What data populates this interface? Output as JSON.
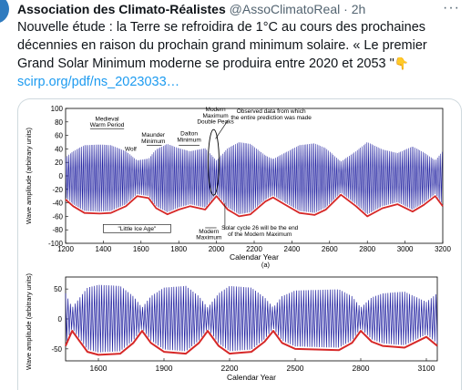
{
  "tweet": {
    "author_name": "Association des Climato-Réalistes",
    "author_handle": "@AssoClimatoReal",
    "separator": "·",
    "time": "2h",
    "more": "···",
    "text": "Nouvelle étude : la Terre se refroidira de 1°C au cours des prochaines décennies en raison du prochain grand minimum solaire. « Le premier Grand Solar Minimum moderne se produira entre 2020 et 2053 \"",
    "emoji": "point-down-emoji",
    "link": "scirp.org/pdf/ns_2023033…"
  },
  "figure_a": {
    "ylabel": "Wave amplitude (arbitrary units)",
    "xlabel": "Calendar Year",
    "panel_label": "(a)",
    "annotations": {
      "medieval": "Medieval\nWarm Period",
      "maunder": "Maunder\nMinimum",
      "wolf": "Wolf",
      "dalton": "Dalton\nMinimum",
      "modern_double": "Modern\nMaximum\nDouble Peaks",
      "observed": "Observed data from which\nthe entire prediction was made",
      "little_ice": "\"Little Ice Age\"",
      "modern_max": "Modern\nMaximum",
      "solar_cycle": "Solar cycle 26 will be the end\nof the Modern Maximum"
    }
  },
  "figure_b": {
    "ylabel": "Wave amplitude (arbitrary units)",
    "xlabel": "Calendar Year"
  },
  "colors": {
    "blue": "#1f1fa0",
    "red": "#d62828"
  },
  "chart_data": [
    {
      "type": "line",
      "title": "",
      "xlabel": "Calendar Year",
      "ylabel": "Wave amplitude (arbitrary units)",
      "xlim": [
        1200,
        3200
      ],
      "ylim": [
        -100,
        100
      ],
      "xticks": [
        1200,
        1400,
        1600,
        1800,
        2000,
        2200,
        2400,
        2600,
        2800,
        3000,
        3200
      ],
      "yticks": [
        -100,
        -80,
        -60,
        -40,
        -20,
        0,
        20,
        40,
        60,
        80,
        100
      ],
      "series": [
        {
          "color": "blue",
          "kind": "oscillation"
        },
        {
          "color": "red",
          "kind": "envelope",
          "x": [
            1200,
            1240,
            1300,
            1380,
            1440,
            1520,
            1580,
            1640,
            1680,
            1740,
            1800,
            1860,
            1940,
            2000,
            2060,
            2120,
            2180,
            2260,
            2300,
            2360,
            2440,
            2520,
            2580,
            2660,
            2740,
            2800,
            2880,
            2960,
            3040,
            3100,
            3160,
            3200
          ],
          "y": [
            -35,
            -45,
            -55,
            -56,
            -55,
            -45,
            -30,
            -33,
            -48,
            -57,
            -50,
            -45,
            -50,
            -30,
            -50,
            -60,
            -57,
            -38,
            -32,
            -42,
            -55,
            -58,
            -50,
            -28,
            -45,
            -60,
            -48,
            -42,
            -53,
            -43,
            -30,
            -45
          ]
        }
      ]
    },
    {
      "type": "line",
      "title": "",
      "xlabel": "Calendar Year",
      "ylabel": "Wave amplitude (arbitrary units)",
      "xlim": [
        1450,
        3150
      ],
      "ylim": [
        -70,
        70
      ],
      "xticks": [
        1600,
        1900,
        2200,
        2500,
        2800,
        3100
      ],
      "yticks": [
        -50,
        0,
        50
      ],
      "series": [
        {
          "color": "blue",
          "kind": "oscillation"
        },
        {
          "color": "red",
          "kind": "envelope",
          "x": [
            1450,
            1480,
            1520,
            1550,
            1600,
            1700,
            1760,
            1800,
            1840,
            1900,
            2000,
            2060,
            2100,
            2150,
            2200,
            2300,
            2360,
            2400,
            2440,
            2500,
            2700,
            2760,
            2800,
            2850,
            2900,
            3000,
            3100,
            3150
          ],
          "y": [
            -45,
            -20,
            -40,
            -55,
            -60,
            -58,
            -40,
            -20,
            -40,
            -55,
            -58,
            -40,
            -20,
            -45,
            -58,
            -55,
            -38,
            -20,
            -40,
            -50,
            -52,
            -40,
            -20,
            -38,
            -45,
            -48,
            -30,
            -45
          ]
        }
      ]
    }
  ]
}
